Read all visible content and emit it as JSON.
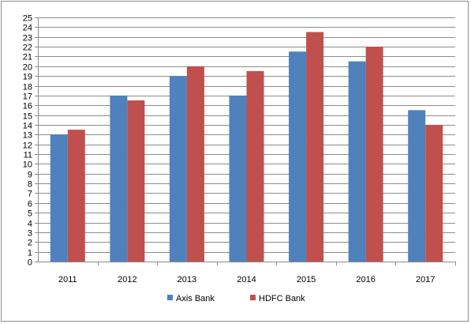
{
  "chart_data": {
    "type": "bar",
    "categories": [
      "2011",
      "2012",
      "2013",
      "2014",
      "2015",
      "2016",
      "2017"
    ],
    "series": [
      {
        "name": "Axis Bank",
        "color": "#4F81BD",
        "values": [
          13,
          17,
          19,
          17,
          21.5,
          20.5,
          15.5
        ]
      },
      {
        "name": "HDFC Bank",
        "color": "#C0504D",
        "values": [
          13.5,
          16.5,
          20,
          19.5,
          23.5,
          22,
          14
        ]
      }
    ],
    "title": "",
    "xlabel": "",
    "ylabel": "",
    "ylim": [
      0,
      25
    ],
    "ytick_step": 1,
    "grid": true,
    "legend_position": "bottom"
  }
}
